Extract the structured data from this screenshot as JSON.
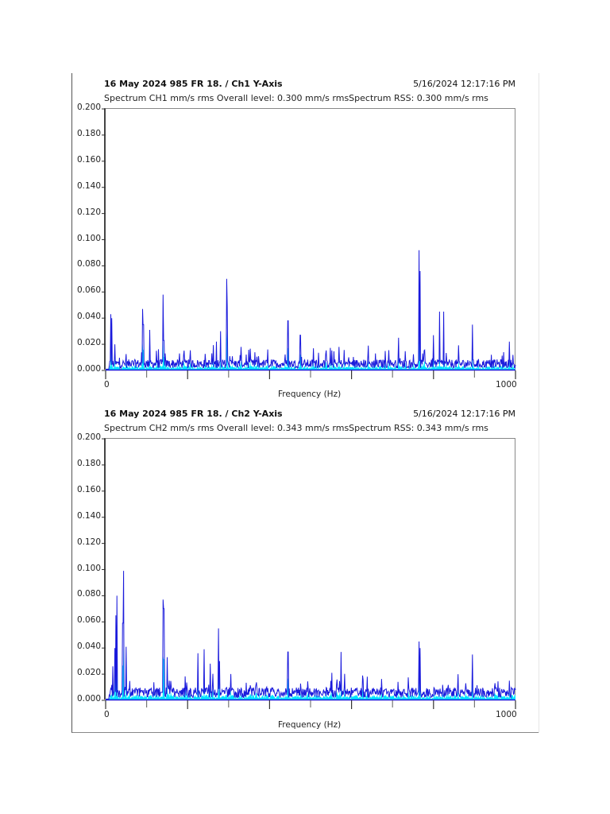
{
  "page": {
    "colors": {
      "line": "#1a1adc",
      "fill": "#00e5ff",
      "axis": "#444444",
      "frame": "#888888"
    }
  },
  "charts": [
    {
      "title": "16 May 2024 985 FR 18. / Ch1 Y-Axis",
      "timestamp": "5/16/2024 12:17:16 PM",
      "subtitle": "Spectrum CH1 mm/s rms   Overall level: 0.300 mm/s rmsSpectrum RSS: 0.300 mm/s rms",
      "y_ticks": [
        "0.200",
        "0.180",
        "0.160",
        "0.140",
        "0.120",
        "0.100",
        "0.080",
        "0.060",
        "0.040",
        "0.020",
        "0.000"
      ],
      "x_tick_start": "0",
      "x_tick_end": "1000",
      "x_label": "Frequency (Hz)"
    },
    {
      "title": "16 May 2024 985 FR 18. / Ch2 Y-Axis",
      "timestamp": "5/16/2024 12:17:16 PM",
      "subtitle": "Spectrum CH2 mm/s rms   Overall level: 0.343 mm/s rmsSpectrum RSS: 0.343 mm/s rms",
      "y_ticks": [
        "0.200",
        "0.180",
        "0.160",
        "0.140",
        "0.120",
        "0.100",
        "0.080",
        "0.060",
        "0.040",
        "0.020",
        "0.000"
      ],
      "x_tick_start": "0",
      "x_tick_end": "1000",
      "x_label": "Frequency (Hz)"
    }
  ],
  "chart_data": [
    {
      "type": "line",
      "title": "16 May 2024 985 FR 18. / Ch1 Y-Axis",
      "subtitle": "Spectrum CH1 mm/s rms   Overall level: 0.300 mm/s rmsSpectrum RSS: 0.300 mm/s rms",
      "xlabel": "Frequency (Hz)",
      "ylabel": "mm/s rms",
      "xlim": [
        0,
        1000
      ],
      "ylim": [
        0,
        0.2
      ],
      "grid": false,
      "series_name": "Spectrum CH1",
      "noise_floor": 0.006,
      "peaks": [
        {
          "x": 12,
          "y": 0.043
        },
        {
          "x": 15,
          "y": 0.04
        },
        {
          "x": 22,
          "y": 0.02
        },
        {
          "x": 90,
          "y": 0.047
        },
        {
          "x": 92,
          "y": 0.035
        },
        {
          "x": 108,
          "y": 0.031
        },
        {
          "x": 140,
          "y": 0.058
        },
        {
          "x": 142,
          "y": 0.023
        },
        {
          "x": 270,
          "y": 0.022
        },
        {
          "x": 280,
          "y": 0.03
        },
        {
          "x": 295,
          "y": 0.07
        },
        {
          "x": 296,
          "y": 0.049
        },
        {
          "x": 330,
          "y": 0.018
        },
        {
          "x": 445,
          "y": 0.038
        },
        {
          "x": 475,
          "y": 0.027
        },
        {
          "x": 570,
          "y": 0.018
        },
        {
          "x": 715,
          "y": 0.025
        },
        {
          "x": 765,
          "y": 0.092
        },
        {
          "x": 767,
          "y": 0.076
        },
        {
          "x": 800,
          "y": 0.027
        },
        {
          "x": 815,
          "y": 0.045
        },
        {
          "x": 825,
          "y": 0.045
        },
        {
          "x": 895,
          "y": 0.035
        },
        {
          "x": 985,
          "y": 0.022
        }
      ]
    },
    {
      "type": "line",
      "title": "16 May 2024 985 FR 18. / Ch2 Y-Axis",
      "subtitle": "Spectrum CH2 mm/s rms   Overall level: 0.343 mm/s rmsSpectrum RSS: 0.343 mm/s rms",
      "xlabel": "Frequency (Hz)",
      "ylabel": "mm/s rms",
      "xlim": [
        0,
        1000
      ],
      "ylim": [
        0,
        0.2
      ],
      "grid": false,
      "series_name": "Spectrum CH2",
      "noise_floor": 0.007,
      "peaks": [
        {
          "x": 18,
          "y": 0.026
        },
        {
          "x": 22,
          "y": 0.04
        },
        {
          "x": 25,
          "y": 0.065
        },
        {
          "x": 27,
          "y": 0.08
        },
        {
          "x": 42,
          "y": 0.059
        },
        {
          "x": 44,
          "y": 0.099
        },
        {
          "x": 50,
          "y": 0.041
        },
        {
          "x": 140,
          "y": 0.077
        },
        {
          "x": 142,
          "y": 0.07
        },
        {
          "x": 150,
          "y": 0.033
        },
        {
          "x": 225,
          "y": 0.036
        },
        {
          "x": 240,
          "y": 0.039
        },
        {
          "x": 255,
          "y": 0.028
        },
        {
          "x": 275,
          "y": 0.055
        },
        {
          "x": 278,
          "y": 0.03
        },
        {
          "x": 445,
          "y": 0.037
        },
        {
          "x": 575,
          "y": 0.037
        },
        {
          "x": 765,
          "y": 0.045
        },
        {
          "x": 767,
          "y": 0.04
        },
        {
          "x": 860,
          "y": 0.02
        },
        {
          "x": 895,
          "y": 0.035
        },
        {
          "x": 985,
          "y": 0.015
        }
      ]
    }
  ]
}
